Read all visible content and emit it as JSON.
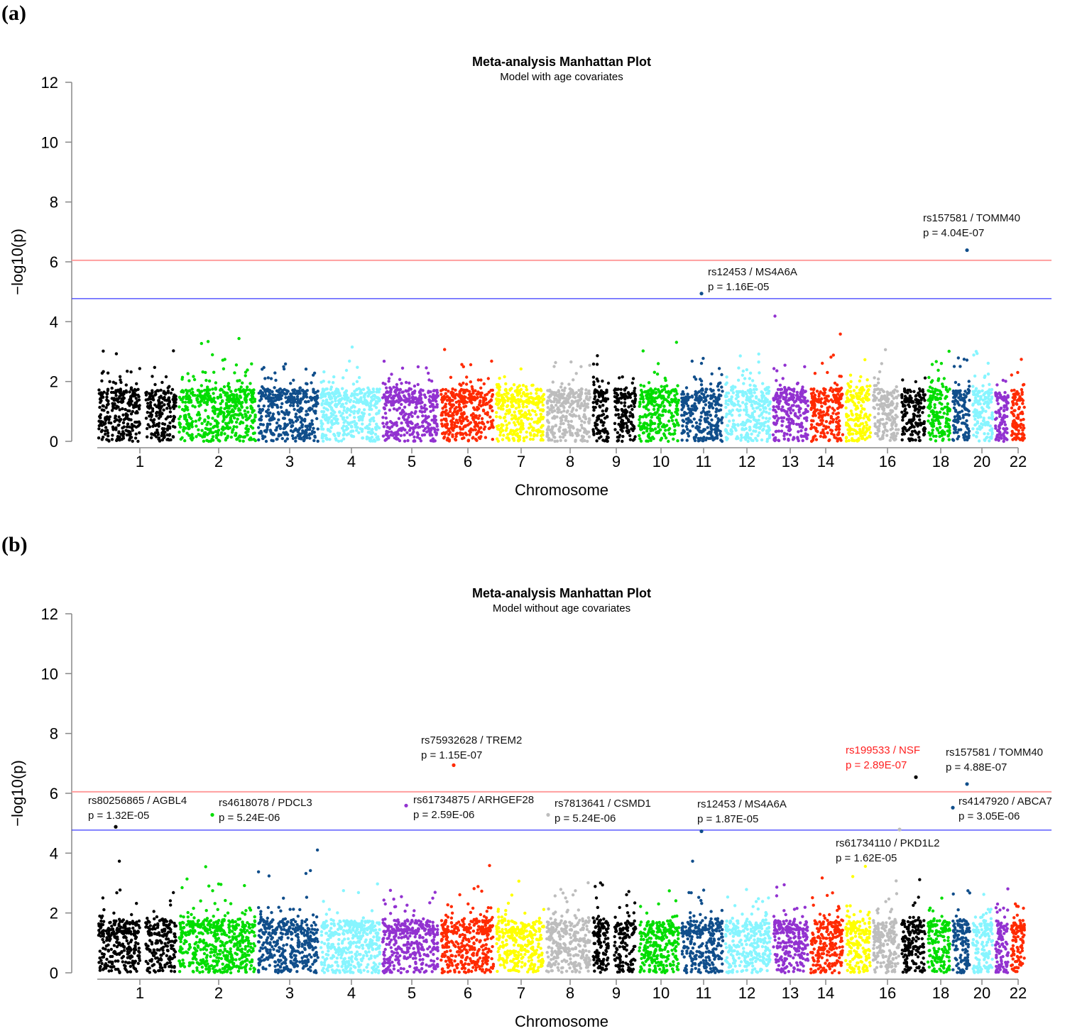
{
  "chart_data": [
    {
      "panel_label": "(a)",
      "type": "scatter",
      "subtype": "manhattan",
      "title": "Meta-analysis Manhattan Plot",
      "subtitle": "Model with age covariates",
      "xlabel": "Chromosome",
      "ylabel": "−log10(p)",
      "ylim": [
        0,
        12
      ],
      "yticks": [
        0,
        2,
        4,
        6,
        8,
        10,
        12
      ],
      "xtick_labels": [
        "1",
        "2",
        "3",
        "4",
        "5",
        "6",
        "7",
        "8",
        "9",
        "10",
        "11",
        "12",
        "13",
        "14",
        "16",
        "18",
        "20",
        "22"
      ],
      "genome_wide_line": 6.05,
      "suggestive_line": 4.77,
      "annotated_snps": [
        {
          "snp": "rs157581 / TOMM40",
          "p_text": "p = 4.04E-07",
          "chr": 19,
          "neglog10p": 6.39,
          "highlight": false
        },
        {
          "snp": "rs12453 / MS4A6A",
          "p_text": "p = 1.16E-05",
          "chr": 11,
          "neglog10p": 4.94,
          "highlight": false
        }
      ]
    },
    {
      "panel_label": "(b)",
      "type": "scatter",
      "subtype": "manhattan",
      "title": "Meta-analysis Manhattan Plot",
      "subtitle": "Model without age covariates",
      "xlabel": "Chromosome",
      "ylabel": "−log10(p)",
      "ylim": [
        0,
        12
      ],
      "yticks": [
        0,
        2,
        4,
        6,
        8,
        10,
        12
      ],
      "xtick_labels": [
        "1",
        "2",
        "3",
        "4",
        "5",
        "6",
        "7",
        "8",
        "9",
        "10",
        "11",
        "12",
        "13",
        "14",
        "16",
        "18",
        "20",
        "22"
      ],
      "genome_wide_line": 6.05,
      "suggestive_line": 4.77,
      "annotated_snps": [
        {
          "snp": "rs75932628 / TREM2",
          "p_text": "p = 1.15E-07",
          "chr": 6,
          "neglog10p": 6.94,
          "highlight": false
        },
        {
          "snp": "rs199533 / NSF",
          "p_text": "p = 2.89E-07",
          "chr": 17,
          "neglog10p": 6.54,
          "highlight": true
        },
        {
          "snp": "rs157581 / TOMM40",
          "p_text": "p = 4.88E-07",
          "chr": 19,
          "neglog10p": 6.31,
          "highlight": false
        },
        {
          "snp": "rs80256865 / AGBL4",
          "p_text": "p = 1.32E-05",
          "chr": 1,
          "neglog10p": 4.88,
          "highlight": false
        },
        {
          "snp": "rs4618078 / PDCL3",
          "p_text": "p = 5.24E-06",
          "chr": 2,
          "neglog10p": 5.28,
          "highlight": false
        },
        {
          "snp": "rs61734875 / ARHGEF28",
          "p_text": "p = 2.59E-06",
          "chr": 5,
          "neglog10p": 5.59,
          "highlight": false
        },
        {
          "snp": "rs7813641 / CSMD1",
          "p_text": "p = 5.24E-06",
          "chr": 8,
          "neglog10p": 5.28,
          "highlight": false
        },
        {
          "snp": "rs12453 / MS4A6A",
          "p_text": "p = 1.87E-05",
          "chr": 11,
          "neglog10p": 4.73,
          "highlight": false
        },
        {
          "snp": "rs4147920 / ABCA7",
          "p_text": "p = 3.05E-06",
          "chr": 19,
          "neglog10p": 5.52,
          "highlight": false
        },
        {
          "snp": "rs61734110 / PKD1L2",
          "p_text": "p = 1.62E-05",
          "chr": 16,
          "neglog10p": 4.79,
          "highlight": false
        }
      ]
    }
  ],
  "colors": {
    "chromosome_cycle": [
      "#000000",
      "#00dd00",
      "#104e8b",
      "#87f5ff",
      "#9232d0",
      "#ff2a00",
      "#ffff00",
      "#bdbdbd"
    ],
    "genome_wide_line": "#ff9e9e",
    "suggestive_line": "#3a3aff",
    "highlight_text": "#ff2020",
    "axis": "#888888"
  }
}
